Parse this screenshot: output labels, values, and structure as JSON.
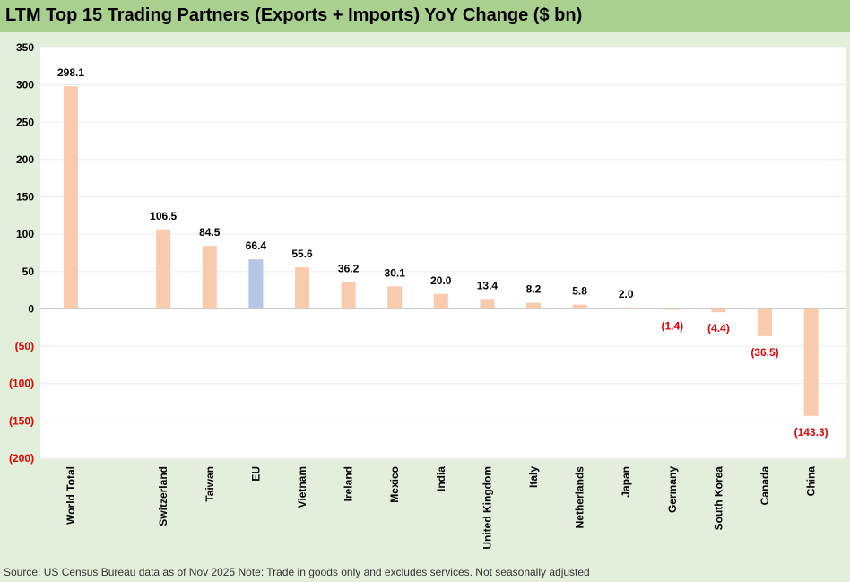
{
  "chart_data": {
    "type": "bar",
    "title": "LTM Top 15 Trading Partners (Exports + Imports) YoY Change ($ bn)",
    "xlabel": "",
    "ylabel": "",
    "ylim": [
      -200,
      350
    ],
    "yticks": [
      350,
      300,
      250,
      200,
      150,
      100,
      50,
      0,
      -50,
      -100,
      -150,
      -200
    ],
    "ytick_labels": [
      "350",
      "300",
      "250",
      "200",
      "150",
      "100",
      "50",
      "0",
      "(50)",
      "(100)",
      "(150)",
      "(200)"
    ],
    "categories": [
      "World Total",
      "",
      "Switzerland",
      "Taiwan",
      "EU",
      "Vietnam",
      "Ireland",
      "Mexico",
      "India",
      "United Kingdom",
      "Italy",
      "Netherlands",
      "Japan",
      "Germany",
      "South Korea",
      "Canada",
      "China"
    ],
    "values": [
      298.1,
      null,
      106.5,
      84.5,
      66.4,
      55.6,
      36.2,
      30.1,
      20.0,
      13.4,
      8.2,
      5.8,
      2.0,
      -1.4,
      -4.4,
      -36.5,
      -143.3
    ],
    "data_labels": [
      "298.1",
      "",
      "106.5",
      "84.5",
      "66.4",
      "55.6",
      "36.2",
      "30.1",
      "20.0",
      "13.4",
      "8.2",
      "5.8",
      "2.0",
      "(1.4)",
      "(4.4)",
      "(36.5)",
      "(143.3)"
    ],
    "highlight_category": "EU",
    "grid": true,
    "colors": {
      "bar": "#f8cbad",
      "highlight_bar": "#b4c7e7",
      "negative_label": "#e00000",
      "positive_label": "#000000",
      "gridline": "#eaeaea",
      "zero_line": "#c8c8c8"
    }
  },
  "footer": {
    "source": "Source: US Census Bureau data as of Nov 2025 Note: Trade in goods only and excludes services. Not seasonally adjusted"
  }
}
